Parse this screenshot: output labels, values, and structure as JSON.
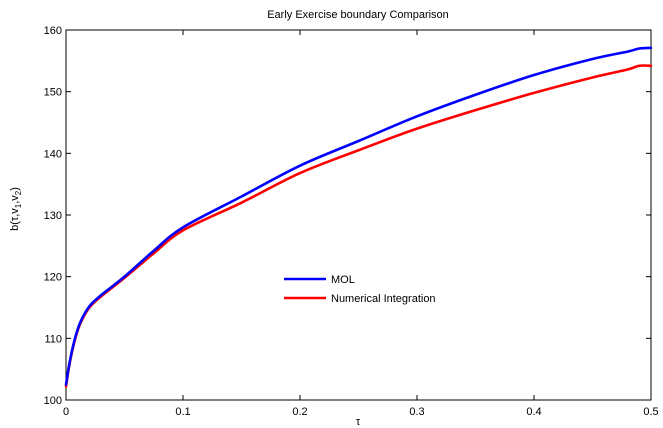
{
  "chart_data": {
    "type": "line",
    "title": "Early Exercise boundary Comparison",
    "xlabel": "τ",
    "ylabel": "b(τ,v1,v2)",
    "xlim": [
      0,
      0.5
    ],
    "ylim": [
      100,
      160
    ],
    "xticks": [
      0,
      0.1,
      0.2,
      0.3,
      0.4,
      0.5
    ],
    "xtick_labels": [
      "0",
      "0.1",
      "0.2",
      "0.3",
      "0.4",
      "0.5"
    ],
    "yticks": [
      100,
      110,
      120,
      130,
      140,
      150,
      160
    ],
    "ytick_labels": [
      "100",
      "110",
      "120",
      "130",
      "140",
      "150",
      "160"
    ],
    "grid": false,
    "legend": "center",
    "series": [
      {
        "name": "MOL",
        "color": "#0000ff",
        "x": [
          0,
          0.003,
          0.007,
          0.012,
          0.02,
          0.03,
          0.05,
          0.075,
          0.1,
          0.15,
          0.2,
          0.25,
          0.3,
          0.35,
          0.4,
          0.45,
          0.48,
          0.49,
          0.5
        ],
        "y": [
          102.5,
          106.0,
          109.5,
          112.5,
          115.2,
          117.0,
          120.0,
          124.2,
          128.0,
          133.0,
          138.0,
          142.0,
          146.0,
          149.5,
          152.7,
          155.3,
          156.5,
          157.0,
          157.1
        ]
      },
      {
        "name": "Numerical Integration",
        "color": "#ff0000",
        "x": [
          0,
          0.003,
          0.007,
          0.012,
          0.02,
          0.03,
          0.05,
          0.075,
          0.1,
          0.15,
          0.2,
          0.25,
          0.3,
          0.35,
          0.4,
          0.45,
          0.48,
          0.49,
          0.5
        ],
        "y": [
          102.2,
          105.8,
          109.3,
          112.3,
          115.0,
          116.8,
          119.8,
          123.8,
          127.5,
          132.0,
          136.8,
          140.5,
          144.0,
          147.0,
          149.8,
          152.3,
          153.6,
          154.2,
          154.2
        ]
      }
    ]
  }
}
